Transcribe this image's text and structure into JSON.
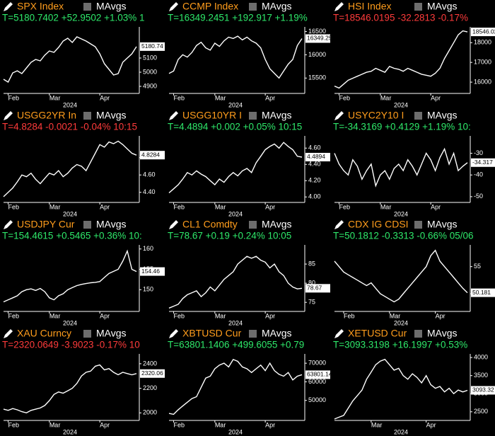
{
  "chart_data": [
    {
      "type": "line",
      "title": "SPX Index",
      "indicator": "MAvgs",
      "quote": "T=5180.7402 +52.9502 +1.03% 1",
      "quote_color": "#2ee86a",
      "last_label": "5180.74",
      "xlabel": "2024",
      "xticks": [
        {
          "value": 1,
          "label": "Feb"
        },
        {
          "value": 10,
          "label": "Mar"
        },
        {
          "value": 21,
          "label": "Apr"
        }
      ],
      "xlim": [
        0,
        29
      ],
      "ylim": [
        4860,
        5320
      ],
      "yticks": [
        4900,
        5000,
        5100
      ],
      "values": [
        4950,
        4930,
        4995,
        5010,
        4990,
        5030,
        5070,
        5090,
        5080,
        5120,
        5150,
        5140,
        5175,
        5220,
        5240,
        5210,
        5250,
        5235,
        5220,
        5200,
        5180,
        5130,
        5060,
        5020,
        4980,
        4990,
        5070,
        5100,
        5130,
        5180.74
      ]
    },
    {
      "type": "line",
      "title": "CCMP Index",
      "indicator": "MAvgs",
      "quote": "T=16349.2451 +192.917 +1.19%",
      "quote_color": "#2ee86a",
      "last_label": "16349.25",
      "xlabel": "2024",
      "xticks": [
        {
          "value": 1,
          "label": "Feb"
        },
        {
          "value": 10,
          "label": "Mar"
        },
        {
          "value": 21,
          "label": "Apr"
        }
      ],
      "xlim": [
        0,
        29
      ],
      "ylim": [
        15200,
        16600
      ],
      "yticks": [
        15500,
        16000,
        16500
      ],
      "values": [
        15600,
        15650,
        15900,
        16000,
        15950,
        16050,
        16200,
        16270,
        16150,
        16100,
        16250,
        16180,
        16300,
        16380,
        16350,
        16400,
        16320,
        16380,
        16300,
        16250,
        16150,
        15900,
        15700,
        15600,
        15500,
        15650,
        15800,
        15900,
        16200,
        16349.25
      ]
    },
    {
      "type": "line",
      "title": "HSI Index",
      "indicator": "MAvgs",
      "quote": "T=18546.0195 -32.2813 -0.17%",
      "quote_color": "#ff3b3b",
      "last_label": "18546.02",
      "xlabel": "2024",
      "xticks": [
        {
          "value": 1,
          "label": "Feb"
        },
        {
          "value": 10,
          "label": "Mar"
        },
        {
          "value": 21,
          "label": "Apr"
        }
      ],
      "xlim": [
        0,
        29
      ],
      "ylim": [
        15500,
        18800
      ],
      "yticks": [
        16000,
        17000,
        18000
      ],
      "values": [
        15800,
        15700,
        15900,
        16100,
        16200,
        16300,
        16400,
        16500,
        16550,
        16700,
        16600,
        16500,
        16800,
        16700,
        16650,
        16550,
        16700,
        16600,
        16500,
        16400,
        16350,
        16300,
        16450,
        16700,
        17200,
        17600,
        18000,
        18400,
        18600,
        18546.02
      ]
    },
    {
      "type": "line",
      "title": "USGG2YR In",
      "indicator": "MAvgs",
      "quote": "T=4.8284 -0.0021 -0.04% 10:15",
      "quote_color": "#ff3b3b",
      "last_label": "4.8284",
      "xlabel": "2024",
      "xticks": [
        {
          "value": 1,
          "label": "Feb"
        },
        {
          "value": 10,
          "label": "Mar"
        },
        {
          "value": 21,
          "label": "Apr"
        }
      ],
      "xlim": [
        0,
        29
      ],
      "ylim": [
        4.3,
        5.05
      ],
      "yticks": [
        {
          "value": 4.4,
          "label": "4.40"
        },
        {
          "value": 4.6,
          "label": "4.60"
        },
        {
          "value": 4.8,
          "label": "4.80"
        }
      ],
      "values": [
        4.35,
        4.4,
        4.45,
        4.52,
        4.6,
        4.58,
        4.62,
        4.55,
        4.5,
        4.56,
        4.62,
        4.6,
        4.65,
        4.58,
        4.62,
        4.68,
        4.72,
        4.7,
        4.65,
        4.75,
        4.85,
        4.95,
        4.92,
        4.98,
        4.96,
        4.99,
        4.95,
        4.9,
        4.85,
        4.8284
      ]
    },
    {
      "type": "line",
      "title": "USGG10YR I",
      "indicator": "MAvgs",
      "quote": "T=4.4894 +0.002 +0.05% 10:15",
      "quote_color": "#2ee86a",
      "last_label": "4.4894",
      "xlabel": "2024",
      "xticks": [
        {
          "value": 1,
          "label": "Feb"
        },
        {
          "value": 10,
          "label": "Mar"
        },
        {
          "value": 21,
          "label": "Apr"
        }
      ],
      "xlim": [
        0,
        29
      ],
      "ylim": [
        3.95,
        4.75
      ],
      "yticks": [
        {
          "value": 4,
          "label": "4.00"
        },
        {
          "value": 4.2,
          "label": "4.20"
        },
        {
          "value": 4.4,
          "label": "4.40"
        },
        {
          "value": 4.6,
          "label": "4.60"
        }
      ],
      "values": [
        4.05,
        4.1,
        4.15,
        4.22,
        4.3,
        4.27,
        4.32,
        4.28,
        4.25,
        4.2,
        4.15,
        4.22,
        4.18,
        4.25,
        4.3,
        4.26,
        4.32,
        4.35,
        4.3,
        4.42,
        4.5,
        4.58,
        4.62,
        4.65,
        4.6,
        4.67,
        4.62,
        4.58,
        4.5,
        4.4894
      ]
    },
    {
      "type": "line",
      "title": "USYC2Y10 I",
      "indicator": "MAvgs",
      "quote": "T=-34.3169 +0.4129 +1.19% 10:",
      "quote_color": "#2ee86a",
      "last_label": "-34.317",
      "xlabel": "2024",
      "xticks": [
        {
          "value": 1,
          "label": "Feb"
        },
        {
          "value": 10,
          "label": "Mar"
        },
        {
          "value": 21,
          "label": "Apr"
        }
      ],
      "xlim": [
        0,
        29
      ],
      "ylim": [
        -52,
        -22
      ],
      "yticks": [
        -50,
        -40,
        -30
      ],
      "values": [
        -30,
        -35,
        -38,
        -40,
        -33,
        -36,
        -42,
        -38,
        -35,
        -45,
        -40,
        -38,
        -42,
        -37,
        -35,
        -38,
        -33,
        -36,
        -40,
        -35,
        -30,
        -33,
        -38,
        -32,
        -28,
        -35,
        -30,
        -38,
        -36,
        -34.317
      ]
    },
    {
      "type": "line",
      "title": "USDJPY Cur",
      "indicator": "MAvgs",
      "quote": "T=154.4615 +0.5465 +0.36% 10:",
      "quote_color": "#2ee86a",
      "last_label": "154.46",
      "xlabel": "2024",
      "xticks": [
        {
          "value": 1,
          "label": "Feb"
        },
        {
          "value": 10,
          "label": "Mar"
        },
        {
          "value": 21,
          "label": "Apr"
        }
      ],
      "xlim": [
        0,
        29
      ],
      "ylim": [
        145,
        161
      ],
      "yticks": [
        150,
        155,
        160
      ],
      "values": [
        147,
        147.5,
        148,
        148.5,
        149.5,
        150,
        150.2,
        149.8,
        150.3,
        149.5,
        148,
        147.5,
        148.5,
        149,
        150,
        150.5,
        151,
        151.3,
        151.5,
        151.7,
        151.8,
        152,
        153,
        154,
        154.5,
        155,
        157,
        159.5,
        155,
        154.46
      ]
    },
    {
      "type": "line",
      "title": "CL1 Comdty",
      "indicator": "MAvgs",
      "quote": "T=78.67 +0.19 +0.24% 10:05",
      "quote_color": "#2ee86a",
      "last_label": "78.67",
      "xlabel": "2024",
      "xticks": [
        {
          "value": 1,
          "label": "Feb"
        },
        {
          "value": 10,
          "label": "Mar"
        },
        {
          "value": 21,
          "label": "Apr"
        }
      ],
      "xlim": [
        0,
        29
      ],
      "ylim": [
        73,
        90
      ],
      "yticks": [
        75,
        80,
        85
      ],
      "values": [
        73.5,
        74,
        74.5,
        76,
        77,
        77.5,
        78,
        76.5,
        77.5,
        79,
        78,
        79.5,
        81,
        82,
        83,
        85,
        86,
        87,
        86.5,
        87,
        86,
        85.5,
        84,
        85,
        83,
        82,
        80,
        79,
        78.5,
        78.67
      ]
    },
    {
      "type": "line",
      "title": "CDX IG CDSI",
      "indicator": "MAvgs",
      "quote": "T=50.1812 -0.3313 -0.66% 05/06",
      "quote_color": "#2ee86a",
      "last_label": "50.181",
      "xlabel": "2024",
      "xticks": [
        {
          "value": 2,
          "label": "Feb"
        },
        {
          "value": 12,
          "label": "Mar"
        },
        {
          "value": 22,
          "label": "Apr"
        }
      ],
      "xlim": [
        0,
        29
      ],
      "ylim": [
        47,
        59
      ],
      "yticks": [
        50,
        55
      ],
      "values": [
        56,
        55,
        54,
        53.5,
        53,
        52.5,
        52,
        51.5,
        52,
        51,
        50,
        49.5,
        49,
        48.5,
        49,
        50,
        51,
        52,
        53,
        54,
        55,
        57,
        58,
        56,
        55,
        54,
        53,
        52,
        51,
        50.181
      ]
    },
    {
      "type": "line",
      "title": "XAU Curncy",
      "indicator": "MAvgs",
      "quote": "T=2320.0649 -3.9023 -0.17% 10",
      "quote_color": "#ff3b3b",
      "last_label": "2320.06",
      "xlabel": "2024",
      "xticks": [
        {
          "value": 1,
          "label": "Feb"
        },
        {
          "value": 10,
          "label": "Mar"
        },
        {
          "value": 21,
          "label": "Apr"
        }
      ],
      "xlim": [
        0,
        29
      ],
      "ylim": [
        1950,
        2480
      ],
      "yticks": [
        2000,
        2200,
        2400
      ],
      "values": [
        2030,
        2020,
        2035,
        2025,
        2010,
        2000,
        2020,
        2030,
        2040,
        2060,
        2100,
        2150,
        2170,
        2160,
        2180,
        2200,
        2240,
        2300,
        2330,
        2340,
        2380,
        2390,
        2350,
        2360,
        2330,
        2310,
        2330,
        2320,
        2310,
        2320.06
      ]
    },
    {
      "type": "line",
      "title": "XBTUSD Cur",
      "indicator": "MAvgs",
      "quote": "T=63801.1406 +499.6055 +0.79",
      "quote_color": "#2ee86a",
      "last_label": "63801.14",
      "xlabel": "2024",
      "xticks": [
        {
          "value": 1,
          "label": "Feb"
        },
        {
          "value": 10,
          "label": "Mar"
        },
        {
          "value": 21,
          "label": "Apr"
        }
      ],
      "xlim": [
        0,
        29
      ],
      "ylim": [
        40000,
        75000
      ],
      "yticks": [
        50000,
        60000,
        70000
      ],
      "values": [
        43000,
        42500,
        45000,
        47000,
        49000,
        51000,
        52000,
        57000,
        62000,
        63000,
        67000,
        69000,
        70000,
        68000,
        72000,
        71000,
        68000,
        67000,
        65000,
        67000,
        69000,
        66000,
        70000,
        66000,
        64000,
        63000,
        65000,
        61000,
        63000,
        63801.14
      ]
    },
    {
      "type": "line",
      "title": "XETUSD Cur",
      "indicator": "MAvgs",
      "quote": "T=3093.3198 +16.1997 +0.53%",
      "quote_color": "#2ee86a",
      "last_label": "3093.32",
      "xlabel": "2024",
      "xticks": [
        {
          "value": 8,
          "label": "Mar"
        },
        {
          "value": 20,
          "label": "Apr"
        }
      ],
      "xlim": [
        0,
        29
      ],
      "ylim": [
        2300,
        4100
      ],
      "yticks": [
        2500,
        3000,
        3500,
        4000
      ],
      "values": [
        2300,
        2350,
        2400,
        2600,
        2800,
        2950,
        3100,
        3400,
        3600,
        3800,
        3900,
        3950,
        3800,
        3650,
        3700,
        3500,
        3400,
        3550,
        3450,
        3300,
        3500,
        3250,
        3150,
        3200,
        3050,
        3150,
        3000,
        3100,
        3050,
        3093.32
      ]
    }
  ]
}
